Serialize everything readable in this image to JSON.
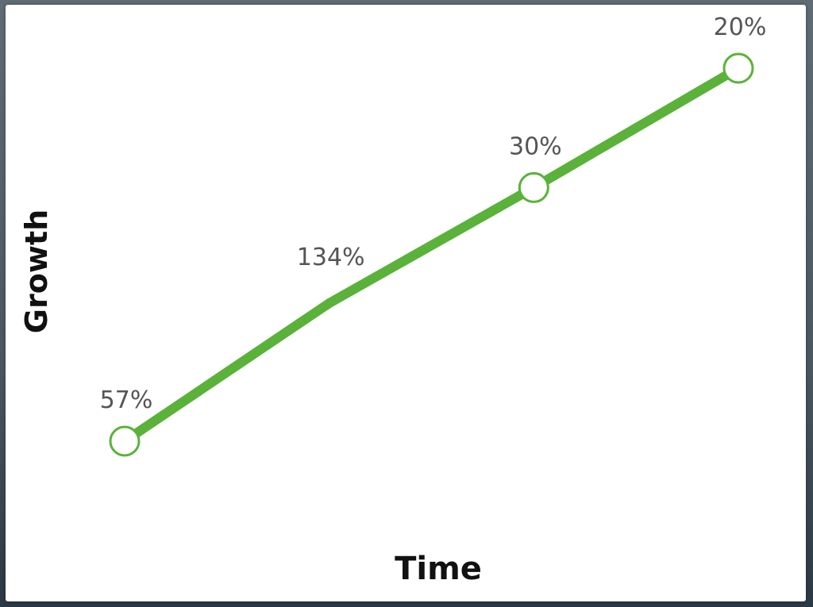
{
  "chart_data": {
    "type": "line",
    "title": "",
    "xlabel": "Time",
    "ylabel": "Growth",
    "grid": false,
    "legend": "none",
    "x": [
      1,
      2,
      3,
      4
    ],
    "series": [
      {
        "values": [
          57,
          134,
          30,
          20
        ],
        "data_labels": [
          "57%",
          "134%",
          "30%",
          "20%"
        ],
        "rendered_levels": [
          0.0,
          0.37,
          0.68,
          1.0
        ],
        "color": "#5ab23a"
      }
    ]
  },
  "colors": {
    "line": "#5ab23a",
    "marker_fill": "#ffffff",
    "axis_title": "#111111",
    "data_label": "#555555"
  }
}
